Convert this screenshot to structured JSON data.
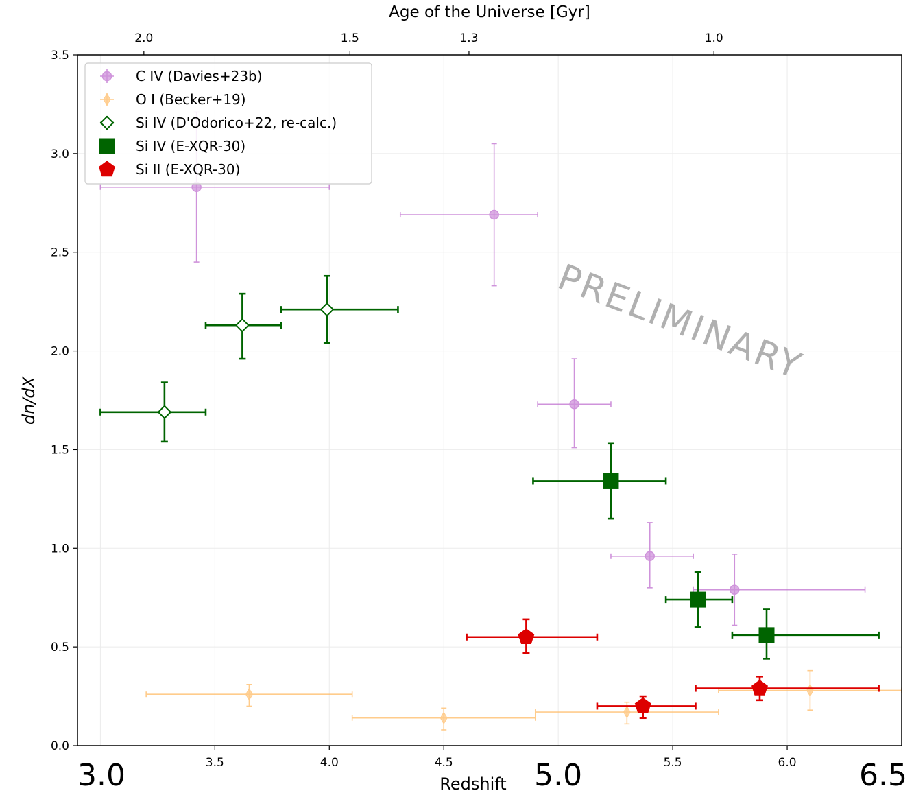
{
  "chart_data": {
    "type": "scatter",
    "xlabel": "Redshift",
    "ylabel": "dn/dX",
    "top_xlabel": "Age of the Universe [Gyr]",
    "xlim": [
      2.9,
      6.5
    ],
    "ylim": [
      0.0,
      3.5
    ],
    "x_ticks": [
      "3.5",
      "4.0",
      "4.5",
      "5.5",
      "6.0"
    ],
    "x_tick_values": [
      3.5,
      4.0,
      4.5,
      5.5,
      6.0
    ],
    "x_big_labels": [
      "3.0",
      "5.0",
      "6.5"
    ],
    "x_big_values": [
      3.0,
      5.0,
      6.5
    ],
    "y_ticks": [
      "0.0",
      "0.5",
      "1.0",
      "1.5",
      "2.0",
      "2.5",
      "3.0",
      "3.5"
    ],
    "y_tick_values": [
      0.0,
      0.5,
      1.0,
      1.5,
      2.0,
      2.5,
      3.0,
      3.5
    ],
    "top_ticks": [
      {
        "label": "2.0",
        "z": 3.19
      },
      {
        "label": "1.5",
        "z": 4.09
      },
      {
        "label": "1.3",
        "z": 4.61
      },
      {
        "label": "1.0",
        "z": 5.68
      }
    ],
    "grid": true,
    "legend_position": "top-left",
    "watermark": "PRELIMINARY",
    "series": [
      {
        "name": "C IV (Davies+23b)",
        "marker": "circle",
        "color": "#bf6fcf",
        "points": [
          {
            "x": 3.42,
            "y": 2.83,
            "xlo": 3.0,
            "xhi": 4.0,
            "ylo": 2.45,
            "yhi": 3.21
          },
          {
            "x": 4.72,
            "y": 2.69,
            "xlo": 4.31,
            "xhi": 4.91,
            "ylo": 2.33,
            "yhi": 3.05
          },
          {
            "x": 5.07,
            "y": 1.73,
            "xlo": 4.91,
            "xhi": 5.23,
            "ylo": 1.51,
            "yhi": 1.96
          },
          {
            "x": 5.4,
            "y": 0.96,
            "xlo": 5.23,
            "xhi": 5.59,
            "ylo": 0.8,
            "yhi": 1.13
          },
          {
            "x": 5.77,
            "y": 0.79,
            "xlo": 5.59,
            "xhi": 6.34,
            "ylo": 0.61,
            "yhi": 0.97
          }
        ]
      },
      {
        "name": "O I (Becker+19)",
        "marker": "diamond",
        "color": "#ffbb66",
        "points": [
          {
            "x": 3.65,
            "y": 0.26,
            "xlo": 3.2,
            "xhi": 4.1,
            "ylo": 0.2,
            "yhi": 0.31
          },
          {
            "x": 4.5,
            "y": 0.14,
            "xlo": 4.1,
            "xhi": 4.9,
            "ylo": 0.08,
            "yhi": 0.19
          },
          {
            "x": 5.3,
            "y": 0.17,
            "xlo": 4.9,
            "xhi": 5.7,
            "ylo": 0.11,
            "yhi": 0.22
          },
          {
            "x": 6.1,
            "y": 0.28,
            "xlo": 5.7,
            "xhi": 6.5,
            "ylo": 0.18,
            "yhi": 0.38
          }
        ]
      },
      {
        "name": "Si IV (D'Odorico+22, re-calc.)",
        "marker": "open-diamond",
        "color": "#006400",
        "points": [
          {
            "x": 3.28,
            "y": 1.69,
            "xlo": 3.0,
            "xhi": 3.46,
            "ylo": 1.54,
            "yhi": 1.84
          },
          {
            "x": 3.62,
            "y": 2.13,
            "xlo": 3.46,
            "xhi": 3.79,
            "ylo": 1.96,
            "yhi": 2.29
          },
          {
            "x": 3.99,
            "y": 2.21,
            "xlo": 3.79,
            "xhi": 4.3,
            "ylo": 2.04,
            "yhi": 2.38
          }
        ]
      },
      {
        "name": "Si IV (E-XQR-30)",
        "marker": "square",
        "color": "#006400",
        "points": [
          {
            "x": 5.23,
            "y": 1.34,
            "xlo": 4.89,
            "xhi": 5.47,
            "ylo": 1.15,
            "yhi": 1.53
          },
          {
            "x": 5.61,
            "y": 0.74,
            "xlo": 5.47,
            "xhi": 5.76,
            "ylo": 0.6,
            "yhi": 0.88
          },
          {
            "x": 5.91,
            "y": 0.56,
            "xlo": 5.76,
            "xhi": 6.4,
            "ylo": 0.44,
            "yhi": 0.69
          }
        ]
      },
      {
        "name": "Si II (E-XQR-30)",
        "marker": "pentagon",
        "color": "#dd0000",
        "points": [
          {
            "x": 4.86,
            "y": 0.55,
            "xlo": 4.6,
            "xhi": 5.17,
            "ylo": 0.47,
            "yhi": 0.64
          },
          {
            "x": 5.37,
            "y": 0.2,
            "xlo": 5.17,
            "xhi": 5.6,
            "ylo": 0.14,
            "yhi": 0.25
          },
          {
            "x": 5.88,
            "y": 0.29,
            "xlo": 5.6,
            "xhi": 6.4,
            "ylo": 0.23,
            "yhi": 0.35
          }
        ]
      }
    ]
  }
}
